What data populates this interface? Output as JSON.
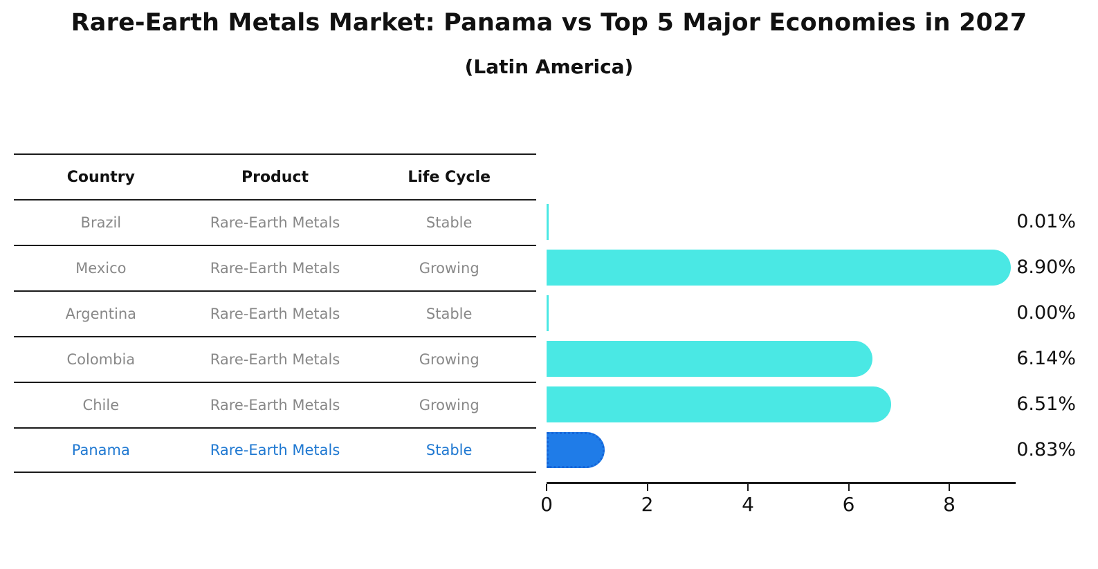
{
  "title": "Rare-Earth Metals Market: Panama vs Top 5 Major Economies in 2027",
  "subtitle": "(Latin America)",
  "table": {
    "headers": [
      "Country",
      "Product",
      "Life Cycle"
    ],
    "highlight_text_color": "#1f78d1",
    "rows": [
      {
        "country": "Brazil",
        "product": "Rare-Earth Metals",
        "life_cycle": "Stable",
        "highlight": false
      },
      {
        "country": "Mexico",
        "product": "Rare-Earth Metals",
        "life_cycle": "Growing",
        "highlight": false
      },
      {
        "country": "Argentina",
        "product": "Rare-Earth Metals",
        "life_cycle": "Stable",
        "highlight": false
      },
      {
        "country": "Colombia",
        "product": "Rare-Earth Metals",
        "life_cycle": "Growing",
        "highlight": false
      },
      {
        "country": "Chile",
        "product": "Rare-Earth Metals",
        "life_cycle": "Growing",
        "highlight": false
      },
      {
        "country": "Panama",
        "product": "Rare-Earth Metals",
        "life_cycle": "Stable",
        "highlight": true
      }
    ]
  },
  "chart_data": {
    "type": "bar",
    "orientation": "horizontal",
    "title": "Rare-Earth Metals Market: Panama vs Top 5 Major Economies in 2027",
    "subtitle": "(Latin America)",
    "categories": [
      "Brazil",
      "Mexico",
      "Argentina",
      "Colombia",
      "Chile",
      "Panama"
    ],
    "values": [
      0.01,
      8.9,
      0.0,
      6.14,
      6.51,
      0.83
    ],
    "value_labels": [
      "0.01%",
      "8.90%",
      "0.00%",
      "6.14%",
      "6.51%",
      "0.83%"
    ],
    "xticks": [
      0,
      2,
      4,
      6,
      8
    ],
    "xlim": [
      0,
      9.3
    ],
    "grid": false,
    "legend": "none",
    "bar_color": "#4ae8e4",
    "highlight_color": "#1f7ce8",
    "highlight_border_color": "#1565d8",
    "highlight_index": 5
  }
}
